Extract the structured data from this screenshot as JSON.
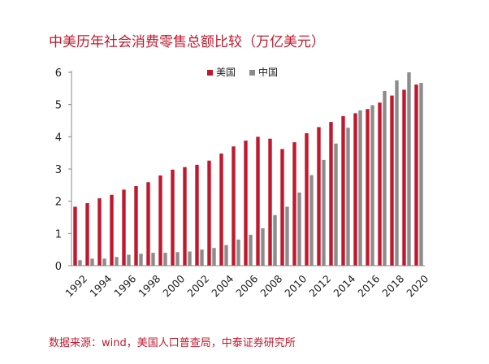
{
  "title": "中美历年社会消费零售总额比较（万亿美元）",
  "source": "数据来源：wind，美国人口普查局，中泰证券研究所",
  "chart_data": {
    "type": "bar",
    "title": "中美历年社会消费零售总额比较（万亿美元）",
    "xlabel": "",
    "ylabel": "",
    "ylim": [
      0,
      6
    ],
    "yticks": [
      0,
      1,
      2,
      3,
      4,
      5,
      6
    ],
    "legend_position": "top-center",
    "grid": false,
    "categories": [
      1992,
      1993,
      1994,
      1995,
      1996,
      1997,
      1998,
      1999,
      2000,
      2001,
      2002,
      2003,
      2004,
      2005,
      2006,
      2007,
      2008,
      2009,
      2010,
      2011,
      2012,
      2013,
      2014,
      2015,
      2016,
      2017,
      2018,
      2019,
      2020
    ],
    "xtick_labels": [
      "1992",
      "1994",
      "1996",
      "1998",
      "2000",
      "2002",
      "2004",
      "2006",
      "2008",
      "2010",
      "2012",
      "2014",
      "2016",
      "2018",
      "2020"
    ],
    "series": [
      {
        "name": "美国",
        "color": "#c0192e",
        "values": [
          1.83,
          1.94,
          2.09,
          2.2,
          2.36,
          2.47,
          2.59,
          2.8,
          2.98,
          3.06,
          3.13,
          3.26,
          3.48,
          3.7,
          3.88,
          4.0,
          3.94,
          3.62,
          3.83,
          4.11,
          4.3,
          4.46,
          4.64,
          4.73,
          4.86,
          5.06,
          5.28,
          5.46,
          5.62
        ]
      },
      {
        "name": "中国",
        "color": "#8c8c8c",
        "values": [
          0.17,
          0.22,
          0.22,
          0.27,
          0.34,
          0.37,
          0.4,
          0.4,
          0.42,
          0.44,
          0.5,
          0.55,
          0.64,
          0.81,
          0.96,
          1.16,
          1.57,
          1.83,
          2.27,
          2.81,
          3.28,
          3.79,
          4.28,
          4.82,
          4.98,
          5.42,
          5.75,
          6.0,
          5.67
        ]
      }
    ]
  }
}
